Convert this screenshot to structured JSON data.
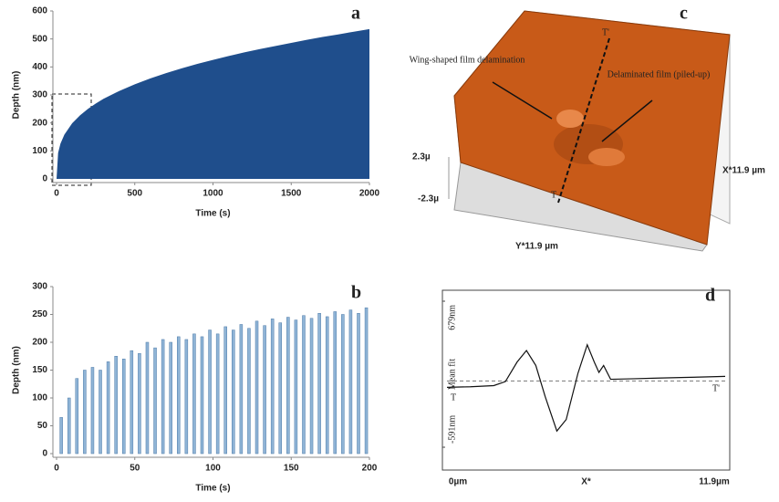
{
  "chart_data": [
    {
      "type": "area",
      "panel_label": "a",
      "y_label": "Depth (nm)",
      "x_label": "Time (s)",
      "color": "#1f4e8c",
      "x": [
        0,
        10,
        25,
        50,
        100,
        150,
        200,
        250,
        300,
        400,
        500,
        600,
        700,
        800,
        900,
        1000,
        1100,
        1200,
        1300,
        1400,
        1500,
        1600,
        1700,
        1800,
        1900,
        2000
      ],
      "values": [
        0,
        93,
        126,
        158,
        199,
        227,
        250,
        269,
        286,
        314,
        338,
        359,
        378,
        395,
        411,
        425,
        439,
        452,
        464,
        475,
        486,
        497,
        507,
        516,
        526,
        535
      ],
      "xlim": [
        0,
        2000
      ],
      "xticks": [
        0,
        500,
        1000,
        1500,
        2000
      ],
      "ylim": [
        0,
        600
      ],
      "yticks": [
        0,
        100,
        200,
        300,
        400,
        500,
        600
      ]
    },
    {
      "type": "bar",
      "panel_label": "b",
      "y_label": "Depth (nm)",
      "x_label": "Time (s)",
      "color": "#8fb4d6",
      "x": [
        3,
        8,
        13,
        18,
        23,
        28,
        33,
        38,
        43,
        48,
        53,
        58,
        63,
        68,
        73,
        78,
        83,
        88,
        93,
        98,
        103,
        108,
        113,
        118,
        123,
        128,
        133,
        138,
        143,
        148,
        153,
        158,
        163,
        168,
        173,
        178,
        183,
        188,
        193,
        198
      ],
      "values": [
        65,
        100,
        135,
        150,
        155,
        150,
        165,
        175,
        170,
        185,
        180,
        200,
        190,
        205,
        200,
        210,
        205,
        215,
        210,
        222,
        215,
        228,
        222,
        232,
        225,
        238,
        230,
        242,
        235,
        245,
        240,
        248,
        243,
        252,
        246,
        255,
        250,
        258,
        252,
        262
      ],
      "xlim": [
        0,
        200
      ],
      "xticks": [
        0,
        50,
        100,
        150,
        200
      ],
      "ylim": [
        0,
        300
      ],
      "yticks": [
        0,
        50,
        100,
        150,
        200,
        250,
        300
      ]
    },
    {
      "type": "line",
      "panel_label": "d",
      "y_label": "Mean fit",
      "x_label": "X*",
      "color": "#111111",
      "x": [
        0,
        1,
        2,
        2.5,
        3,
        3.4,
        3.8,
        4.2,
        4.7,
        5.1,
        5.6,
        6,
        6.3,
        6.5,
        6.7,
        7,
        8,
        9,
        10,
        11,
        11.9
      ],
      "values": [
        -70,
        -65,
        -55,
        -20,
        150,
        250,
        120,
        -150,
        -450,
        -350,
        50,
        300,
        150,
        60,
        120,
        0,
        5,
        10,
        15,
        20,
        25
      ],
      "mean_fit": -15,
      "end_labels": [
        "T",
        "T'"
      ],
      "xlim": [
        0,
        11.9
      ],
      "xticks": [
        {
          "value": 0,
          "label": "0µm"
        },
        {
          "value": 11.9,
          "label": "11.9µm"
        }
      ],
      "ylim": [
        -591,
        679
      ],
      "yticks": [
        {
          "value": 679,
          "label": "679nm"
        },
        {
          "value": -591,
          "label": "-591nm"
        }
      ]
    }
  ],
  "image_panel": {
    "label": "c",
    "wing": "Wing-shaped film delamination",
    "piled": "Delaminated film (piled-up)",
    "t_top": "T'",
    "t_bottom": "T",
    "z_top": "2.3µ",
    "z_bottom": "-2.3µ",
    "x_axis": "X*11.9 µm",
    "y_axis": "Y*11.9 µm"
  }
}
